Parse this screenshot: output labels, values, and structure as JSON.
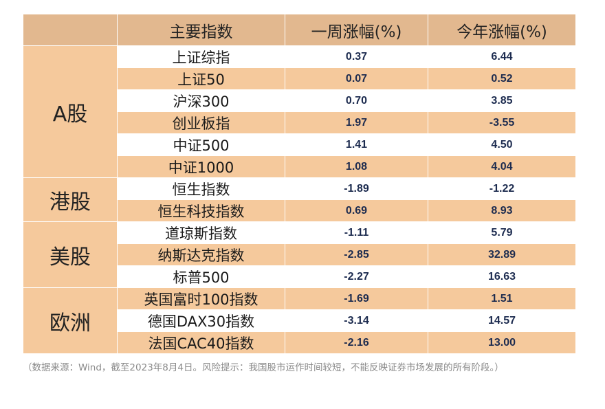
{
  "table": {
    "header": {
      "group": "",
      "name": "主要指数",
      "week": "一周涨幅(%)",
      "ytd": "今年涨幅(%)"
    },
    "groups": [
      {
        "label": "A股",
        "rows": [
          {
            "name": "上证综指",
            "week": "0.37",
            "ytd": "6.44"
          },
          {
            "name": "上证50",
            "week": "0.07",
            "ytd": "0.52"
          },
          {
            "name": "沪深300",
            "week": "0.70",
            "ytd": "3.85"
          },
          {
            "name": "创业板指",
            "week": "1.97",
            "ytd": "-3.55"
          },
          {
            "name": "中证500",
            "week": "1.41",
            "ytd": "4.50"
          },
          {
            "name": "中证1000",
            "week": "1.08",
            "ytd": "4.04"
          }
        ]
      },
      {
        "label": "港股",
        "rows": [
          {
            "name": "恒生指数",
            "week": "-1.89",
            "ytd": "-1.22"
          },
          {
            "name": "恒生科技指数",
            "week": "0.69",
            "ytd": "8.93"
          }
        ]
      },
      {
        "label": "美股",
        "rows": [
          {
            "name": "道琼斯指数",
            "week": "-1.11",
            "ytd": "5.79"
          },
          {
            "name": "纳斯达克指数",
            "week": "-2.85",
            "ytd": "32.89"
          },
          {
            "name": "标普500",
            "week": "-2.27",
            "ytd": "16.63"
          }
        ]
      },
      {
        "label": "欧洲",
        "rows": [
          {
            "name": "英国富时100指数",
            "week": "-1.69",
            "ytd": "1.51"
          },
          {
            "name": "德国DAX30指数",
            "week": "-3.14",
            "ytd": "14.57"
          },
          {
            "name": "法国CAC40指数",
            "week": "-2.16",
            "ytd": "13.00"
          }
        ]
      }
    ]
  },
  "footnote": "（数据来源：Wind，截至2023年8月4日。风险提示：我国股市运作时间较短，不能反映证券市场发展的所有阶段。）",
  "colors": {
    "header_bg": "#e2b88f",
    "peach": "#f5c99c",
    "number_text": "#1c2b4f"
  }
}
